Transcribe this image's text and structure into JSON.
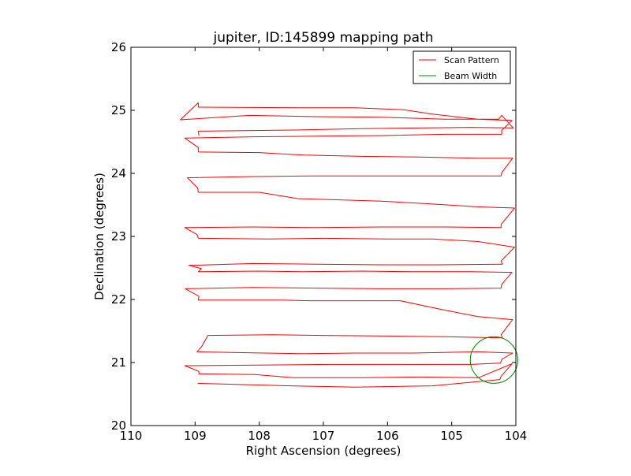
{
  "chart_data": {
    "type": "line",
    "title": "jupiter, ID:145899 mapping path",
    "xlabel": "Right Ascension (degrees)",
    "ylabel": "Declination (degrees)",
    "xlim": [
      110,
      104
    ],
    "ylim": [
      20,
      26
    ],
    "xticks": [
      110,
      109,
      108,
      107,
      106,
      105,
      104
    ],
    "yticks": [
      20,
      21,
      22,
      23,
      24,
      25,
      26
    ],
    "xtick_labels": [
      "110",
      "109",
      "108",
      "107",
      "106",
      "105",
      "104"
    ],
    "ytick_labels": [
      "20",
      "21",
      "22",
      "23",
      "24",
      "25",
      "26"
    ],
    "legend": {
      "position": "top-right"
    },
    "series": [
      {
        "name": "Scan Pattern",
        "color": "#ff0000",
        "points": [
          [
            108.96,
            20.67
          ],
          [
            107.5,
            20.63
          ],
          [
            106.5,
            20.61
          ],
          [
            105.3,
            20.63
          ],
          [
            104.66,
            20.69
          ],
          [
            104.25,
            20.73
          ],
          [
            104.23,
            20.78
          ],
          [
            104.06,
            20.98
          ],
          [
            104.58,
            20.76
          ],
          [
            105.5,
            20.77
          ],
          [
            106.4,
            20.76
          ],
          [
            107.47,
            20.76
          ],
          [
            108.07,
            20.81
          ],
          [
            108.94,
            20.82
          ],
          [
            108.94,
            20.86
          ],
          [
            109.16,
            20.95
          ],
          [
            108.0,
            20.96
          ],
          [
            106.9,
            20.97
          ],
          [
            105.8,
            20.97
          ],
          [
            104.7,
            20.97
          ],
          [
            104.24,
            20.99
          ],
          [
            104.22,
            21.05
          ],
          [
            104.05,
            21.15
          ],
          [
            104.6,
            21.17
          ],
          [
            105.6,
            21.15
          ],
          [
            106.5,
            21.15
          ],
          [
            107.3,
            21.14
          ],
          [
            107.92,
            21.15
          ],
          [
            108.97,
            21.17
          ],
          [
            108.9,
            21.25
          ],
          [
            108.8,
            21.43
          ],
          [
            107.8,
            21.44
          ],
          [
            107.0,
            21.43
          ],
          [
            106.0,
            21.42
          ],
          [
            105.1,
            21.41
          ],
          [
            104.21,
            21.39
          ],
          [
            104.23,
            21.44
          ],
          [
            104.05,
            21.68
          ],
          [
            104.6,
            21.73
          ],
          [
            105.2,
            21.85
          ],
          [
            105.8,
            21.98
          ],
          [
            107.2,
            21.98
          ],
          [
            107.65,
            21.99
          ],
          [
            108.95,
            21.99
          ],
          [
            108.94,
            22.05
          ],
          [
            109.15,
            22.17
          ],
          [
            108.1,
            22.19
          ],
          [
            107.1,
            22.18
          ],
          [
            106.1,
            22.17
          ],
          [
            105.1,
            22.17
          ],
          [
            104.23,
            22.18
          ],
          [
            104.22,
            22.24
          ],
          [
            104.06,
            22.43
          ],
          [
            104.7,
            22.44
          ],
          [
            105.6,
            22.44
          ],
          [
            106.4,
            22.45
          ],
          [
            107.3,
            22.44
          ],
          [
            108.0,
            22.45
          ],
          [
            108.95,
            22.44
          ],
          [
            108.9,
            22.49
          ],
          [
            109.1,
            22.54
          ],
          [
            108.1,
            22.57
          ],
          [
            107.1,
            22.56
          ],
          [
            106.1,
            22.55
          ],
          [
            105.2,
            22.55
          ],
          [
            104.21,
            22.56
          ],
          [
            104.23,
            22.61
          ],
          [
            104.02,
            22.83
          ],
          [
            104.6,
            22.92
          ],
          [
            105.3,
            22.96
          ],
          [
            106.0,
            22.96
          ],
          [
            107.0,
            22.97
          ],
          [
            107.85,
            22.96
          ],
          [
            108.95,
            22.97
          ],
          [
            108.97,
            23.03
          ],
          [
            109.16,
            23.14
          ],
          [
            108.1,
            23.15
          ],
          [
            107.1,
            23.14
          ],
          [
            106.1,
            23.15
          ],
          [
            105.1,
            23.15
          ],
          [
            104.23,
            23.14
          ],
          [
            104.23,
            23.19
          ],
          [
            104.02,
            23.45
          ],
          [
            104.6,
            23.47
          ],
          [
            105.4,
            23.52
          ],
          [
            106.1,
            23.56
          ],
          [
            107.4,
            23.6
          ],
          [
            108.0,
            23.7
          ],
          [
            108.95,
            23.7
          ],
          [
            108.96,
            23.77
          ],
          [
            109.12,
            23.93
          ],
          [
            108.1,
            23.95
          ],
          [
            107.1,
            23.96
          ],
          [
            106.1,
            23.96
          ],
          [
            105.1,
            23.96
          ],
          [
            104.23,
            23.96
          ],
          [
            104.22,
            24.01
          ],
          [
            104.05,
            24.24
          ],
          [
            104.6,
            24.24
          ],
          [
            105.5,
            24.26
          ],
          [
            106.4,
            24.27
          ],
          [
            107.3,
            24.29
          ],
          [
            108.0,
            24.33
          ],
          [
            108.95,
            24.34
          ],
          [
            108.95,
            24.41
          ],
          [
            109.16,
            24.56
          ],
          [
            108.1,
            24.58
          ],
          [
            107.1,
            24.59
          ],
          [
            106.1,
            24.6
          ],
          [
            105.1,
            24.62
          ],
          [
            104.22,
            24.62
          ],
          [
            104.22,
            24.68
          ],
          [
            104.06,
            24.84
          ],
          [
            104.6,
            24.86
          ],
          [
            105.3,
            24.94
          ],
          [
            105.75,
            25.01
          ],
          [
            106.5,
            25.04
          ],
          [
            107.2,
            25.04
          ],
          [
            108.95,
            25.05
          ],
          [
            108.95,
            25.12
          ],
          [
            109.23,
            24.85
          ],
          [
            108.15,
            24.92
          ],
          [
            107.1,
            24.9
          ],
          [
            106.1,
            24.89
          ],
          [
            105.1,
            24.86
          ],
          [
            104.27,
            24.86
          ],
          [
            104.22,
            24.92
          ],
          [
            104.04,
            24.72
          ],
          [
            104.7,
            24.73
          ],
          [
            105.5,
            24.72
          ],
          [
            106.4,
            24.71
          ],
          [
            107.3,
            24.69
          ],
          [
            108.1,
            24.68
          ],
          [
            108.95,
            24.67
          ],
          [
            108.94,
            24.6
          ]
        ]
      },
      {
        "name": "Beam Width",
        "color": "#008000",
        "center": [
          104.34,
          21.04
        ],
        "radius": 0.37
      }
    ]
  }
}
